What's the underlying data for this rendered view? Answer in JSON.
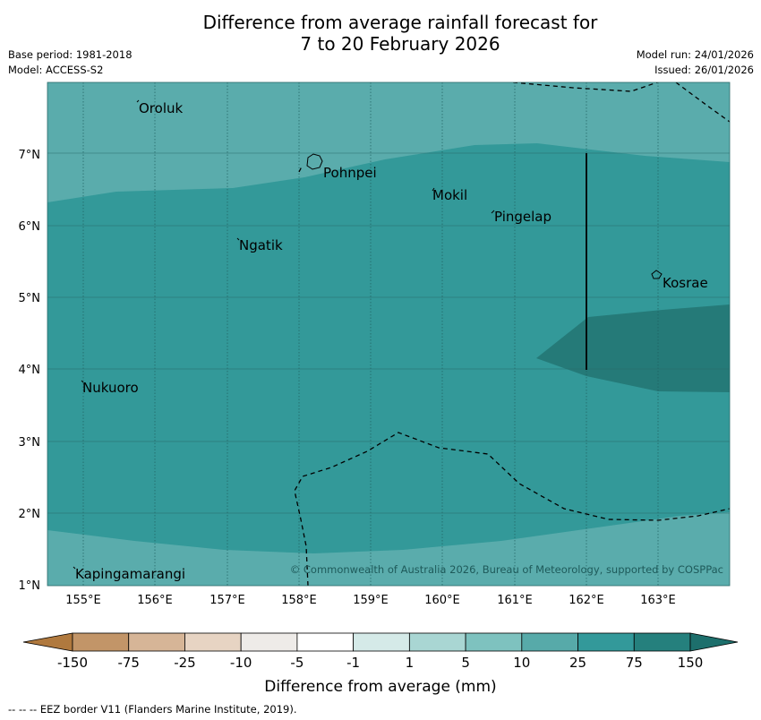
{
  "title_line1": "Difference from average rainfall forecast for",
  "title_line2": "7 to 20 February 2026",
  "meta": {
    "base_period": "Base period: 1981-2018",
    "model": "Model: ACCESS-S2",
    "model_run": "Model run: 24/01/2026",
    "issued": "Issued: 26/01/2026"
  },
  "axes": {
    "lon_labels": [
      "155°E",
      "156°E",
      "157°E",
      "158°E",
      "159°E",
      "160°E",
      "161°E",
      "162°E",
      "163°E"
    ],
    "lat_labels": [
      "7°N",
      "6°N",
      "5°N",
      "4°N",
      "3°N",
      "2°N",
      "1°N"
    ]
  },
  "places": [
    {
      "name": "Oroluk"
    },
    {
      "name": "Pohnpei"
    },
    {
      "name": "Mokil"
    },
    {
      "name": "Pingelap"
    },
    {
      "name": "Ngatik"
    },
    {
      "name": "Kosrae"
    },
    {
      "name": "Nukuoro"
    },
    {
      "name": "Kapingamarangi"
    }
  ],
  "copyright": "© Commonwealth of Australia 2026, Bureau of Meteorology, supported by COSPPac",
  "colorbar": {
    "title": "Difference from average (mm)",
    "tick_labels": [
      "-150",
      "-75",
      "-25",
      "-10",
      "-5",
      "-1",
      "1",
      "5",
      "10",
      "25",
      "75",
      "150"
    ],
    "colors": [
      "#b0793e",
      "#c29568",
      "#d6b597",
      "#e7d4c3",
      "#eeebe8",
      "#ffffff",
      "#d5eae8",
      "#a9d6d3",
      "#7ec2bf",
      "#57aaa9",
      "#33999a",
      "#25807d",
      "#1d6f6c"
    ]
  },
  "footer": "--  --  -- EEZ border V11 (Flanders Marine Institute, 2019)."
}
